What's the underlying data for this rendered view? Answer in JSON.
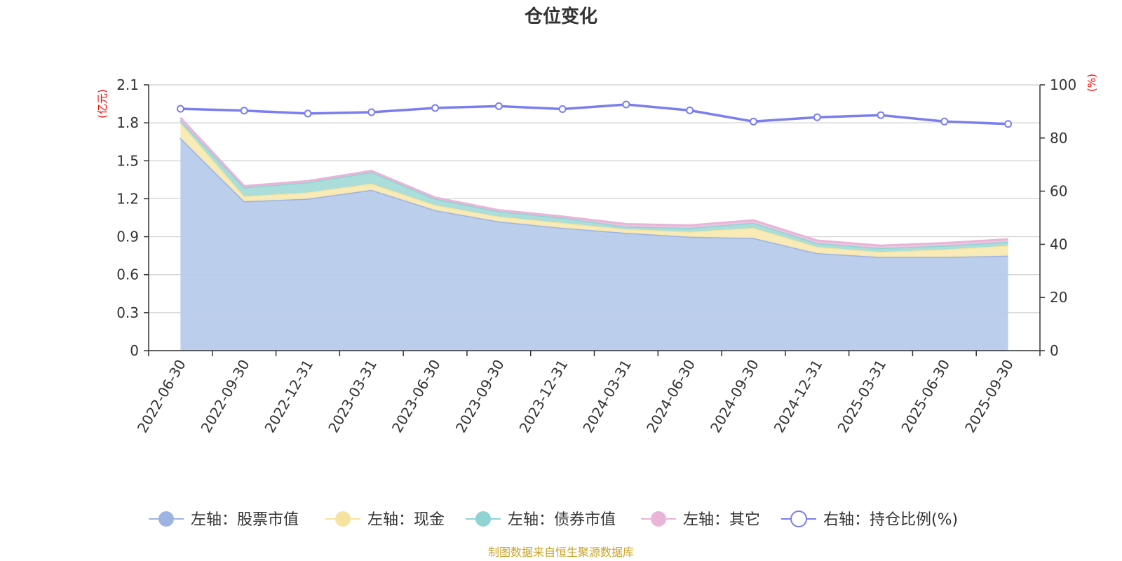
{
  "chart_data": {
    "type": "area",
    "title": "仓位变化",
    "left_axis_unit": "(亿元)",
    "right_axis_unit": "(%)",
    "categories": [
      "2022-06-30",
      "2022-09-30",
      "2022-12-31",
      "2023-03-31",
      "2023-06-30",
      "2023-09-30",
      "2023-12-31",
      "2024-03-31",
      "2024-06-30",
      "2024-09-30",
      "2024-12-31",
      "2025-03-31",
      "2025-06-30",
      "2025-09-30"
    ],
    "left_ylim": [
      0,
      2.1
    ],
    "left_ticks": [
      "0",
      "0.3",
      "0.6",
      "0.9",
      "1.2",
      "1.5",
      "1.8",
      "2.1"
    ],
    "right_ylim": [
      0,
      100
    ],
    "right_ticks": [
      "0",
      "20",
      "40",
      "60",
      "80",
      "100"
    ],
    "grid": true,
    "legend_position": "bottom",
    "stacked_series": [
      {
        "name": "左轴：股票市值",
        "color": "#9db4e0",
        "fill": "#b7cbea",
        "values": [
          1.68,
          1.18,
          1.2,
          1.27,
          1.11,
          1.02,
          0.97,
          0.93,
          0.9,
          0.89,
          0.77,
          0.74,
          0.74,
          0.75
        ]
      },
      {
        "name": "左轴：现金",
        "color": "#f5e3a0",
        "fill": "#f9eab3",
        "values": [
          0.12,
          0.04,
          0.05,
          0.05,
          0.04,
          0.04,
          0.04,
          0.03,
          0.04,
          0.08,
          0.05,
          0.04,
          0.06,
          0.08
        ]
      },
      {
        "name": "左轴：债券市值",
        "color": "#8fd3d3",
        "fill": "#a6dcd9",
        "values": [
          0.02,
          0.07,
          0.08,
          0.09,
          0.05,
          0.04,
          0.04,
          0.02,
          0.03,
          0.04,
          0.03,
          0.03,
          0.03,
          0.03
        ]
      },
      {
        "name": "左轴：其它",
        "color": "#e8b4d8",
        "fill": "#eec5e2",
        "values": [
          0.02,
          0.01,
          0.01,
          0.01,
          0.01,
          0.01,
          0.01,
          0.02,
          0.02,
          0.02,
          0.02,
          0.02,
          0.02,
          0.02
        ]
      }
    ],
    "line_series": {
      "name": "右轴：持仓比例(%)",
      "color": "#7b7ef0",
      "values": [
        91.0,
        90.3,
        89.2,
        89.7,
        91.3,
        92.0,
        90.9,
        92.6,
        90.4,
        86.2,
        87.8,
        88.6,
        86.2,
        85.3
      ]
    },
    "source_note": "制图数据来自恒生聚源数据库"
  }
}
